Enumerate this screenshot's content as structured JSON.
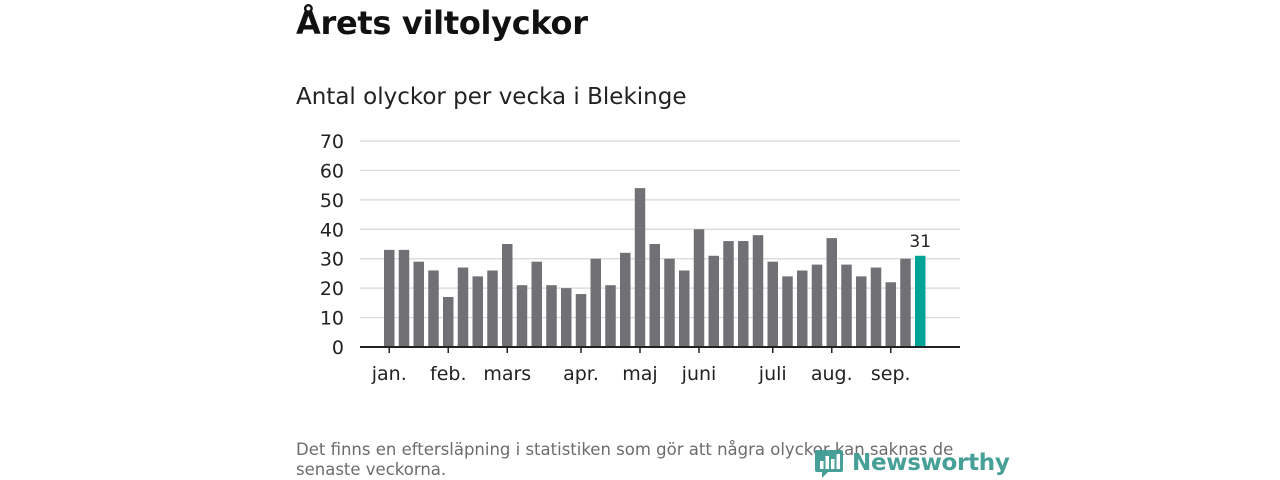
{
  "page": {
    "title": "Årets viltolyckor",
    "footnote": "Det finns en eftersläpning i statistiken som gör att några olyckor kan saknas de senaste veckorna."
  },
  "brand": {
    "name": "Newsworthy",
    "icon": "bar-chart-bubble-icon",
    "color": "#3d9b93"
  },
  "chart_data": {
    "type": "bar",
    "title": "Antal olyckor per vecka i Blekinge",
    "xlabel": "",
    "ylabel": "",
    "ylim": [
      0,
      70
    ],
    "yticks": [
      0,
      10,
      20,
      30,
      40,
      50,
      60,
      70
    ],
    "grid": true,
    "values": [
      33,
      33,
      29,
      26,
      17,
      27,
      24,
      26,
      35,
      21,
      29,
      21,
      20,
      18,
      30,
      21,
      32,
      54,
      35,
      30,
      26,
      40,
      31,
      36,
      36,
      38,
      29,
      24,
      26,
      28,
      37,
      28,
      24,
      27,
      22,
      30,
      31
    ],
    "month_labels": [
      {
        "label": "jan.",
        "week_index": 0
      },
      {
        "label": "feb.",
        "week_index": 4
      },
      {
        "label": "mars",
        "week_index": 8
      },
      {
        "label": "apr.",
        "week_index": 13
      },
      {
        "label": "maj",
        "week_index": 17
      },
      {
        "label": "juni",
        "week_index": 21
      },
      {
        "label": "juli",
        "week_index": 26
      },
      {
        "label": "aug.",
        "week_index": 30
      },
      {
        "label": "sep.",
        "week_index": 34
      }
    ],
    "highlight": {
      "index": 36,
      "label": "31"
    },
    "colors": {
      "bar": "#717075",
      "highlight": "#00a396",
      "grid": "#d7d7d7",
      "axis": "#222222"
    }
  }
}
